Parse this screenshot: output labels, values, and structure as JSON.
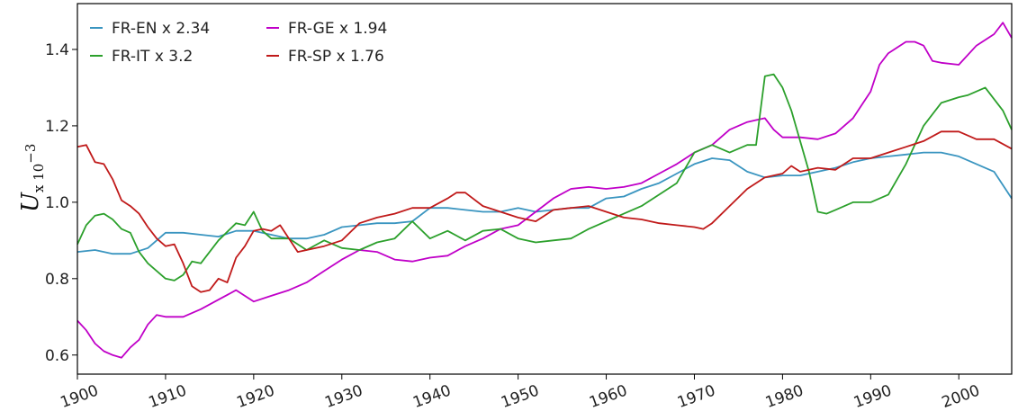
{
  "chart_data": {
    "type": "line",
    "ylabel": {
      "main": "U",
      "subscript": "x 10",
      "exponent": "−3"
    },
    "xlim": [
      1900,
      2006
    ],
    "ylim": [
      0.55,
      1.52
    ],
    "x_ticks": [
      1900,
      1910,
      1920,
      1930,
      1940,
      1950,
      1960,
      1970,
      1980,
      1990,
      2000
    ],
    "x_tick_labels": [
      "1900",
      "1910",
      "1920",
      "1930",
      "1940",
      "1950",
      "1960",
      "1970",
      "1980",
      "1990",
      "2000"
    ],
    "y_ticks": [
      0.6,
      0.8,
      1.0,
      1.2,
      1.4
    ],
    "y_tick_labels": [
      "0.6",
      "0.8",
      "1.0",
      "1.2",
      "1.4"
    ],
    "grid": false,
    "legend_position": "top-left",
    "series": [
      {
        "name": "FR-EN x 2.34",
        "color": "#3a95c0",
        "x": [
          1900,
          1902,
          1904,
          1906,
          1908,
          1910,
          1912,
          1914,
          1916,
          1918,
          1920,
          1922,
          1924,
          1926,
          1928,
          1930,
          1932,
          1934,
          1936,
          1938,
          1940,
          1942,
          1944,
          1946,
          1948,
          1950,
          1952,
          1954,
          1956,
          1958,
          1960,
          1962,
          1964,
          1966,
          1968,
          1970,
          1972,
          1974,
          1976,
          1978,
          1980,
          1982,
          1984,
          1986,
          1988,
          1990,
          1992,
          1994,
          1996,
          1998,
          2000,
          2002,
          2004,
          2006
        ],
        "values": [
          0.87,
          0.875,
          0.865,
          0.865,
          0.88,
          0.92,
          0.92,
          0.915,
          0.91,
          0.925,
          0.925,
          0.915,
          0.905,
          0.905,
          0.915,
          0.935,
          0.94,
          0.945,
          0.945,
          0.95,
          0.985,
          0.985,
          0.98,
          0.975,
          0.975,
          0.985,
          0.975,
          0.98,
          0.985,
          0.985,
          1.01,
          1.015,
          1.035,
          1.05,
          1.075,
          1.1,
          1.115,
          1.11,
          1.08,
          1.065,
          1.07,
          1.07,
          1.08,
          1.09,
          1.105,
          1.115,
          1.12,
          1.125,
          1.13,
          1.13,
          1.12,
          1.1,
          1.08,
          1.01
        ]
      },
      {
        "name": "FR-GE x 1.94",
        "color": "#c000c8",
        "x": [
          1900,
          1901,
          1902,
          1903,
          1904,
          1905,
          1906,
          1907,
          1908,
          1909,
          1910,
          1912,
          1914,
          1916,
          1918,
          1920,
          1922,
          1924,
          1926,
          1928,
          1930,
          1932,
          1934,
          1936,
          1938,
          1940,
          1942,
          1944,
          1946,
          1948,
          1950,
          1952,
          1954,
          1956,
          1958,
          1960,
          1962,
          1964,
          1966,
          1968,
          1970,
          1972,
          1974,
          1976,
          1977,
          1978,
          1979,
          1980,
          1982,
          1984,
          1986,
          1988,
          1990,
          1991,
          1992,
          1994,
          1995,
          1996,
          1997,
          1998,
          2000,
          2002,
          2004,
          2005,
          2006
        ],
        "values": [
          0.69,
          0.665,
          0.63,
          0.61,
          0.6,
          0.593,
          0.62,
          0.64,
          0.68,
          0.705,
          0.7,
          0.7,
          0.72,
          0.745,
          0.77,
          0.74,
          0.755,
          0.77,
          0.79,
          0.82,
          0.85,
          0.875,
          0.87,
          0.85,
          0.845,
          0.855,
          0.86,
          0.885,
          0.905,
          0.93,
          0.94,
          0.975,
          1.01,
          1.035,
          1.04,
          1.035,
          1.04,
          1.05,
          1.075,
          1.1,
          1.13,
          1.15,
          1.19,
          1.21,
          1.215,
          1.22,
          1.19,
          1.17,
          1.17,
          1.165,
          1.18,
          1.22,
          1.29,
          1.36,
          1.39,
          1.42,
          1.42,
          1.41,
          1.37,
          1.365,
          1.36,
          1.41,
          1.44,
          1.47,
          1.43
        ]
      },
      {
        "name": "FR-IT x 3.2",
        "color": "#2ca02c",
        "x": [
          1900,
          1901,
          1902,
          1903,
          1904,
          1905,
          1906,
          1907,
          1908,
          1910,
          1911,
          1912,
          1913,
          1914,
          1916,
          1918,
          1919,
          1920,
          1921,
          1922,
          1924,
          1926,
          1928,
          1930,
          1932,
          1934,
          1936,
          1938,
          1940,
          1942,
          1944,
          1946,
          1948,
          1950,
          1952,
          1954,
          1956,
          1958,
          1960,
          1962,
          1964,
          1966,
          1968,
          1970,
          1972,
          1974,
          1976,
          1977,
          1978,
          1979,
          1980,
          1981,
          1982,
          1983,
          1984,
          1985,
          1986,
          1988,
          1990,
          1992,
          1994,
          1996,
          1998,
          2000,
          2001,
          2002,
          2003,
          2004,
          2005,
          2006
        ],
        "values": [
          0.89,
          0.94,
          0.965,
          0.97,
          0.955,
          0.93,
          0.92,
          0.87,
          0.84,
          0.8,
          0.795,
          0.81,
          0.845,
          0.84,
          0.9,
          0.945,
          0.94,
          0.975,
          0.925,
          0.905,
          0.905,
          0.875,
          0.9,
          0.88,
          0.875,
          0.895,
          0.905,
          0.95,
          0.905,
          0.925,
          0.9,
          0.925,
          0.93,
          0.905,
          0.895,
          0.9,
          0.905,
          0.93,
          0.95,
          0.97,
          0.99,
          1.02,
          1.05,
          1.13,
          1.15,
          1.13,
          1.15,
          1.15,
          1.33,
          1.335,
          1.3,
          1.24,
          1.16,
          1.08,
          0.975,
          0.97,
          0.98,
          1.0,
          1.0,
          1.02,
          1.1,
          1.2,
          1.26,
          1.275,
          1.28,
          1.29,
          1.3,
          1.27,
          1.24,
          1.19
        ]
      },
      {
        "name": "FR-SP x 1.76",
        "color": "#c01a1a",
        "x": [
          1900,
          1901,
          1902,
          1903,
          1904,
          1905,
          1906,
          1907,
          1908,
          1909,
          1910,
          1911,
          1912,
          1913,
          1914,
          1915,
          1916,
          1917,
          1918,
          1919,
          1920,
          1921,
          1922,
          1923,
          1924,
          1925,
          1926,
          1928,
          1930,
          1932,
          1934,
          1936,
          1938,
          1940,
          1942,
          1943,
          1944,
          1946,
          1948,
          1950,
          1952,
          1954,
          1956,
          1958,
          1960,
          1962,
          1964,
          1966,
          1968,
          1970,
          1971,
          1972,
          1974,
          1976,
          1978,
          1980,
          1981,
          1982,
          1984,
          1986,
          1988,
          1990,
          1992,
          1994,
          1996,
          1998,
          2000,
          2002,
          2004,
          2006
        ],
        "values": [
          1.145,
          1.15,
          1.105,
          1.1,
          1.06,
          1.005,
          0.99,
          0.97,
          0.935,
          0.905,
          0.885,
          0.89,
          0.84,
          0.78,
          0.765,
          0.77,
          0.8,
          0.79,
          0.855,
          0.885,
          0.925,
          0.93,
          0.925,
          0.94,
          0.905,
          0.87,
          0.875,
          0.885,
          0.9,
          0.945,
          0.96,
          0.97,
          0.985,
          0.985,
          1.01,
          1.025,
          1.025,
          0.99,
          0.975,
          0.96,
          0.95,
          0.98,
          0.985,
          0.99,
          0.975,
          0.96,
          0.955,
          0.945,
          0.94,
          0.935,
          0.93,
          0.945,
          0.99,
          1.035,
          1.065,
          1.075,
          1.095,
          1.08,
          1.09,
          1.085,
          1.115,
          1.115,
          1.13,
          1.145,
          1.16,
          1.185,
          1.185,
          1.165,
          1.165,
          1.14
        ]
      }
    ]
  }
}
